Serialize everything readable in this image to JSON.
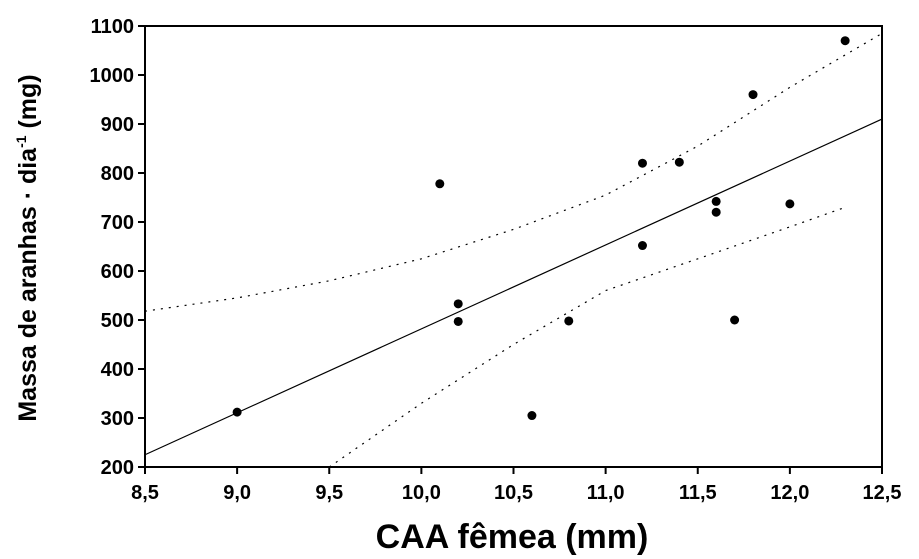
{
  "chart_data": {
    "type": "scatter",
    "title": "",
    "xlabel": "CAA fêmea (mm)",
    "ylabel_main": "Massa de aranhas · dia",
    "ylabel_sup": "-1",
    "ylabel_unit": " (mg)",
    "xlim": [
      8.5,
      12.5
    ],
    "ylim": [
      200,
      1100
    ],
    "x_ticks": [
      "8,5",
      "9,0",
      "9,5",
      "10,0",
      "10,5",
      "11,0",
      "11,5",
      "12,0",
      "12,5"
    ],
    "y_ticks": [
      "200",
      "300",
      "400",
      "500",
      "600",
      "700",
      "800",
      "900",
      "1000",
      "1100"
    ],
    "points": [
      {
        "x": 9.0,
        "y": 312
      },
      {
        "x": 10.1,
        "y": 778
      },
      {
        "x": 10.2,
        "y": 533
      },
      {
        "x": 10.2,
        "y": 497
      },
      {
        "x": 10.6,
        "y": 305
      },
      {
        "x": 10.8,
        "y": 498
      },
      {
        "x": 11.2,
        "y": 820
      },
      {
        "x": 11.2,
        "y": 652
      },
      {
        "x": 11.4,
        "y": 822
      },
      {
        "x": 11.6,
        "y": 742
      },
      {
        "x": 11.6,
        "y": 720
      },
      {
        "x": 11.7,
        "y": 500
      },
      {
        "x": 11.8,
        "y": 960
      },
      {
        "x": 12.0,
        "y": 737
      },
      {
        "x": 12.3,
        "y": 1070
      }
    ],
    "regression_line": [
      {
        "x": 8.5,
        "y": 225
      },
      {
        "x": 12.5,
        "y": 910
      }
    ],
    "upper_confidence_band": [
      {
        "x": 8.5,
        "y": 518
      },
      {
        "x": 9.0,
        "y": 545
      },
      {
        "x": 9.5,
        "y": 580
      },
      {
        "x": 10.0,
        "y": 625
      },
      {
        "x": 10.5,
        "y": 685
      },
      {
        "x": 11.0,
        "y": 755
      },
      {
        "x": 11.5,
        "y": 855
      },
      {
        "x": 12.0,
        "y": 975
      },
      {
        "x": 12.5,
        "y": 1085
      }
    ],
    "lower_confidence_band": [
      {
        "x": 9.5,
        "y": 200
      },
      {
        "x": 10.0,
        "y": 330
      },
      {
        "x": 10.5,
        "y": 450
      },
      {
        "x": 11.0,
        "y": 560
      },
      {
        "x": 11.5,
        "y": 625
      },
      {
        "x": 12.0,
        "y": 690
      },
      {
        "x": 12.3,
        "y": 730
      }
    ],
    "grid": false,
    "legend": "none"
  }
}
